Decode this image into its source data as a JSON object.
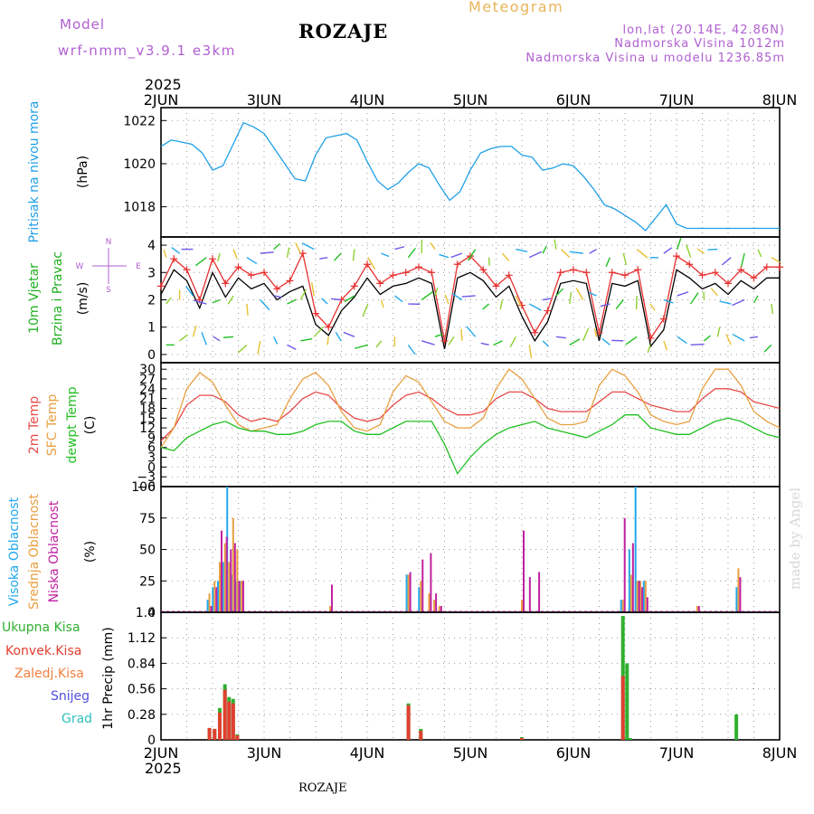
{
  "header": {
    "model_label": "Model",
    "model_name": "wrf-nmm_v3.9.1  e3km",
    "station": "ROZAJE",
    "title": "Meteogram",
    "coords": "lon,lat (20.14E, 42.86N)",
    "elevation": "Nadmorska Visina 1012m",
    "model_elevation": "Nadmorska Visina u modelu 1236.85m",
    "year_top": "2025",
    "year_bottom": "2025",
    "footer_station": "ROZAJE",
    "watermark": "made by Angel"
  },
  "colors": {
    "pressure": "#1ea0e6",
    "wind_speed": "#000000",
    "gust": "#e83030",
    "temp2m": "#e84a4a",
    "sfc_temp": "#e8a040",
    "dewpoint": "#20c020",
    "high_cloud": "#20a8ee",
    "mid_cloud": "#e8a040",
    "low_cloud": "#c020a0",
    "total_precip": "#30b030",
    "conv_precip": "#e04030",
    "freezing": "#f08040",
    "snow": "#5050e0",
    "hail": "#30c0c0",
    "purple": "#b05fd0"
  },
  "chart_data": [
    {
      "type": "line",
      "panel": "pressure",
      "ylabel_lines": [
        "Pritisak na nivou mora",
        "(hPa)"
      ],
      "ylim": [
        1016.6,
        1022.6
      ],
      "yticks": [
        1018,
        1020,
        1022
      ],
      "x_days": [
        0,
        0.1,
        0.2,
        0.3,
        0.4,
        0.5,
        0.6,
        0.7,
        0.8,
        0.9,
        1.0,
        1.1,
        1.2,
        1.3,
        1.4,
        1.5,
        1.6,
        1.7,
        1.8,
        1.9,
        2.0,
        2.1,
        2.2,
        2.3,
        2.4,
        2.5,
        2.6,
        2.7,
        2.8,
        2.9,
        3.0,
        3.1,
        3.2,
        3.3,
        3.4,
        3.5,
        3.6,
        3.7,
        3.8,
        3.9,
        4.0,
        4.1,
        4.2,
        4.3,
        4.4,
        4.5,
        4.6,
        4.7,
        4.8,
        4.9,
        5.0,
        5.1,
        5.2,
        5.3,
        5.4,
        5.5,
        5.6,
        5.7,
        5.8,
        5.9,
        6.0
      ],
      "series": [
        {
          "name": "sea level pressure",
          "values": [
            1020.8,
            1021.1,
            1021.0,
            1020.9,
            1020.5,
            1019.7,
            1019.9,
            1020.9,
            1021.9,
            1021.7,
            1021.4,
            1020.7,
            1020.0,
            1019.3,
            1019.2,
            1020.4,
            1021.2,
            1021.3,
            1021.4,
            1021.1,
            1020.1,
            1019.2,
            1018.8,
            1019.1,
            1019.6,
            1020.0,
            1019.8,
            1019.0,
            1018.3,
            1018.7,
            1019.7,
            1020.5,
            1020.7,
            1020.8,
            1020.8,
            1020.4,
            1020.3,
            1019.7,
            1019.8,
            1020.0,
            1019.9,
            1019.4,
            1018.8,
            1018.1,
            1017.9,
            1017.6,
            1017.3,
            1016.9,
            1017.5,
            1018.1,
            1017.2,
            1017.0,
            1017.0,
            1017.0,
            1017.0,
            1017.0,
            1017.0,
            1017.0,
            1017.0,
            1017.0,
            1017.0
          ]
        }
      ]
    },
    {
      "type": "line",
      "panel": "wind",
      "ylabel_lines": [
        "10m Vjetar",
        "Brzina i Pravac",
        "(m/s)"
      ],
      "compass_labels": [
        "N",
        "W",
        "E",
        "S"
      ],
      "ylim": [
        -0.3,
        4.3
      ],
      "yticks": [
        0,
        1,
        2,
        3,
        4
      ],
      "x_days": [
        0,
        0.125,
        0.25,
        0.375,
        0.5,
        0.625,
        0.75,
        0.875,
        1.0,
        1.125,
        1.25,
        1.375,
        1.5,
        1.625,
        1.75,
        1.875,
        2.0,
        2.125,
        2.25,
        2.375,
        2.5,
        2.625,
        2.75,
        2.875,
        3.0,
        3.125,
        3.25,
        3.375,
        3.5,
        3.625,
        3.75,
        3.875,
        4.0,
        4.125,
        4.25,
        4.375,
        4.5,
        4.625,
        4.75,
        4.875,
        5.0,
        5.125,
        5.25,
        5.375,
        5.5,
        5.625,
        5.75,
        5.875,
        6.0
      ],
      "series": [
        {
          "name": "wind speed",
          "values": [
            2.2,
            3.1,
            2.7,
            1.7,
            3.0,
            2.1,
            2.8,
            2.4,
            2.6,
            2.0,
            2.3,
            2.5,
            1.1,
            0.7,
            1.6,
            2.1,
            2.8,
            2.2,
            2.5,
            2.6,
            2.8,
            2.6,
            0.2,
            2.8,
            3.0,
            2.7,
            2.1,
            2.5,
            1.4,
            0.5,
            1.2,
            2.6,
            2.7,
            2.6,
            0.5,
            2.6,
            2.5,
            2.7,
            0.3,
            0.9,
            3.1,
            2.8,
            2.4,
            2.6,
            2.2,
            2.7,
            2.4,
            2.8,
            2.8
          ]
        },
        {
          "name": "gust",
          "values": [
            2.5,
            3.5,
            3.1,
            2.0,
            3.5,
            2.6,
            3.2,
            2.9,
            3.0,
            2.4,
            2.7,
            3.7,
            1.5,
            1.0,
            2.0,
            2.5,
            3.3,
            2.6,
            2.9,
            3.0,
            3.2,
            3.0,
            0.5,
            3.3,
            3.6,
            3.1,
            2.5,
            2.9,
            1.8,
            0.8,
            1.6,
            3.0,
            3.1,
            3.0,
            0.8,
            3.0,
            2.9,
            3.1,
            0.6,
            1.3,
            3.6,
            3.3,
            2.9,
            3.0,
            2.6,
            3.1,
            2.8,
            3.2,
            3.2
          ]
        }
      ]
    },
    {
      "type": "line",
      "panel": "temperature",
      "ylabel_lines": [
        "2m Temp",
        "SFC Temp",
        "dewpt Temp",
        "(C)"
      ],
      "ylim": [
        -6,
        32
      ],
      "yticks": [
        -6,
        -3,
        0,
        3,
        6,
        9,
        12,
        15,
        18,
        21,
        24,
        27,
        30
      ],
      "x_days": [
        0,
        0.125,
        0.25,
        0.375,
        0.5,
        0.625,
        0.75,
        0.875,
        1.0,
        1.125,
        1.25,
        1.375,
        1.5,
        1.625,
        1.75,
        1.875,
        2.0,
        2.125,
        2.25,
        2.375,
        2.5,
        2.625,
        2.75,
        2.875,
        3.0,
        3.125,
        3.25,
        3.375,
        3.5,
        3.625,
        3.75,
        3.875,
        4.0,
        4.125,
        4.25,
        4.375,
        4.5,
        4.625,
        4.75,
        4.875,
        5.0,
        5.125,
        5.25,
        5.375,
        5.5,
        5.625,
        5.75,
        5.875,
        6.0
      ],
      "series": [
        {
          "name": "2m Temp",
          "values": [
            8,
            12,
            19,
            22,
            22,
            20,
            16,
            14,
            15,
            14,
            17,
            21,
            23,
            22,
            18,
            15,
            14,
            15,
            19,
            22,
            23,
            21,
            18,
            16,
            16,
            17,
            21,
            23,
            23,
            21,
            18,
            17,
            17,
            17,
            20,
            23,
            23,
            21,
            19,
            18,
            17,
            17,
            21,
            24,
            24,
            23,
            20,
            19,
            18
          ]
        },
        {
          "name": "SFC Temp",
          "values": [
            6,
            12,
            24,
            29,
            26,
            19,
            13,
            11,
            12,
            13,
            21,
            27,
            29,
            25,
            17,
            12,
            11,
            13,
            23,
            28,
            26,
            20,
            14,
            12,
            12,
            15,
            24,
            30,
            27,
            21,
            15,
            13,
            13,
            14,
            25,
            30,
            28,
            23,
            16,
            14,
            13,
            14,
            24,
            30,
            30,
            25,
            17,
            14,
            12
          ]
        },
        {
          "name": "dewpt Temp",
          "values": [
            6,
            5,
            9,
            11,
            13,
            14,
            12,
            11,
            11,
            10,
            10,
            11,
            13,
            14,
            14,
            11,
            10,
            10,
            12,
            14,
            14,
            14,
            7,
            -2,
            3,
            7,
            10,
            12,
            13,
            14,
            12,
            11,
            10,
            9,
            11,
            13,
            16,
            16,
            12,
            11,
            10,
            10,
            12,
            14,
            15,
            14,
            12,
            10,
            9
          ]
        }
      ]
    },
    {
      "type": "bar",
      "panel": "clouds",
      "ylabel_lines": [
        "Visoka Oblacnost",
        "Srednja Oblacnost",
        "Niska Oblacnost",
        "(%)"
      ],
      "ylim": [
        0,
        100
      ],
      "yticks": [
        0,
        25,
        50,
        75,
        100
      ],
      "x_days": [
        0.47,
        0.52,
        0.57,
        0.62,
        0.66,
        0.7,
        0.74,
        0.78,
        1.64,
        2.4,
        2.52,
        2.6,
        2.65,
        2.7,
        3.5,
        3.56,
        3.65,
        4.48,
        4.56,
        4.62,
        4.65,
        4.7,
        5.2,
        5.6
      ],
      "series": [
        {
          "name": "Visoka Oblacnost",
          "values": [
            10,
            20,
            25,
            40,
            100,
            30,
            25,
            25,
            0,
            30,
            20,
            0,
            0,
            0,
            0,
            0,
            0,
            10,
            50,
            100,
            25,
            25,
            0,
            20
          ]
        },
        {
          "name": "Srednja Oblacnost",
          "values": [
            15,
            25,
            40,
            55,
            40,
            75,
            50,
            25,
            5,
            30,
            25,
            15,
            10,
            5,
            10,
            0,
            0,
            10,
            30,
            25,
            25,
            25,
            5,
            35
          ]
        },
        {
          "name": "Niska Oblacnost",
          "values": [
            5,
            20,
            65,
            60,
            50,
            55,
            25,
            25,
            22,
            32,
            42,
            47,
            15,
            5,
            65,
            28,
            32,
            75,
            55,
            25,
            20,
            12,
            5,
            28
          ]
        }
      ]
    },
    {
      "type": "bar",
      "panel": "precipitation",
      "ylabel_lines": [
        "1hr Precip (mm)"
      ],
      "legend": [
        "Ukupna Kisa",
        "Konvek.Kisa",
        "Zaledj.Kisa",
        "Snijeg",
        "Grad"
      ],
      "ylim": [
        0,
        1.4
      ],
      "yticks": [
        0,
        0.28,
        0.56,
        0.84,
        1.12,
        1.4
      ],
      "x_days": [
        0.47,
        0.52,
        0.57,
        0.62,
        0.66,
        0.7,
        0.74,
        2.4,
        2.52,
        3.5,
        4.48,
        4.52,
        4.55,
        4.58,
        5.58
      ],
      "series": [
        {
          "name": "Ukupna Kisa",
          "values": [
            0.13,
            0.12,
            0.35,
            0.61,
            0.47,
            0.45,
            0.06,
            0.4,
            0.12,
            0.03,
            1.36,
            0.84,
            0.02,
            0.0,
            0.28
          ]
        },
        {
          "name": "Konvek.Kisa",
          "values": [
            0.13,
            0.12,
            0.3,
            0.55,
            0.42,
            0.4,
            0.05,
            0.38,
            0.1,
            0.02,
            0.7,
            0.0,
            0.0,
            0.0,
            0.0
          ]
        }
      ]
    }
  ],
  "x_axis": {
    "tick_labels": [
      "2JUN",
      "3JUN",
      "4JUN",
      "5JUN",
      "6JUN",
      "7JUN",
      "8JUN"
    ]
  }
}
